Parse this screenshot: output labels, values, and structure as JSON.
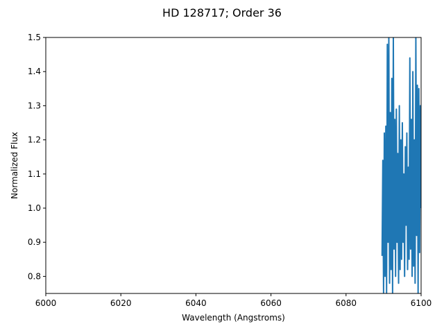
{
  "chart_data": {
    "type": "line",
    "title": "HD 128717; Order 36",
    "xlabel": "Wavelength (Angstroms)",
    "ylabel": "Normalized Flux",
    "xlim": [
      6000,
      6100
    ],
    "ylim": [
      0.75,
      1.5
    ],
    "xticks": [
      "6000",
      "6020",
      "6040",
      "6060",
      "6080",
      "6100"
    ],
    "yticks": [
      "0.8",
      "0.9",
      "1.0",
      "1.1",
      "1.2",
      "1.3",
      "1.4",
      "1.5"
    ],
    "grid": false,
    "legend": false,
    "series": [
      {
        "color": "#1f77b4",
        "x": [
          6089.6,
          6089.8,
          6090.0,
          6090.2,
          6090.4,
          6090.6,
          6090.8,
          6091.0,
          6091.2,
          6091.4,
          6091.6,
          6091.8,
          6092.0,
          6092.2,
          6092.4,
          6092.6,
          6092.8,
          6093.0,
          6093.2,
          6093.4,
          6093.6,
          6093.8,
          6094.0,
          6094.2,
          6094.4,
          6094.6,
          6094.8,
          6095.0,
          6095.2,
          6095.4,
          6095.6,
          6095.8,
          6096.0,
          6096.2,
          6096.4,
          6096.6,
          6096.8,
          6097.0,
          6097.2,
          6097.4,
          6097.6,
          6097.8,
          6098.0,
          6098.2,
          6098.4,
          6098.6,
          6098.8,
          6099.0,
          6099.2,
          6099.4,
          6099.6,
          6099.8,
          6100.0
        ],
        "y": [
          0.86,
          1.14,
          0.75,
          1.22,
          0.8,
          1.24,
          0.75,
          1.48,
          0.9,
          1.5,
          0.78,
          1.28,
          0.82,
          1.38,
          0.75,
          1.5,
          0.88,
          1.26,
          0.8,
          1.29,
          0.9,
          1.16,
          0.78,
          1.3,
          0.82,
          1.2,
          0.85,
          1.25,
          0.9,
          1.1,
          0.8,
          1.18,
          0.95,
          1.22,
          0.82,
          1.12,
          0.85,
          1.44,
          0.88,
          1.26,
          0.8,
          1.4,
          0.83,
          1.2,
          0.78,
          1.5,
          0.92,
          1.36,
          0.75,
          1.35,
          0.87,
          1.3,
          1.0
        ]
      }
    ]
  }
}
